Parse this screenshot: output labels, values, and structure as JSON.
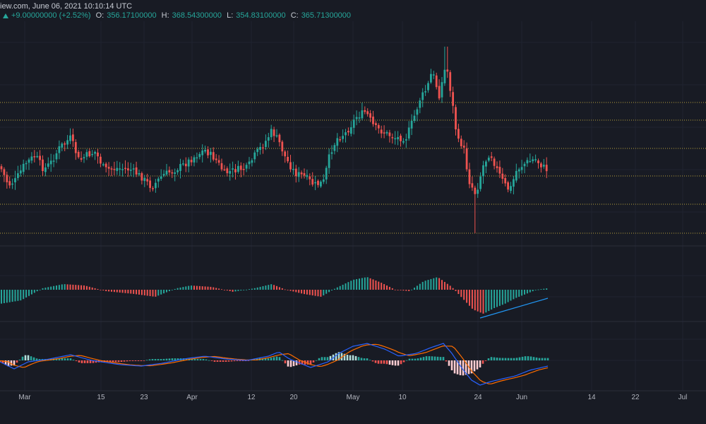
{
  "header": {
    "source_datetime": "iew.com, June 06, 2021 10:10:14 UTC",
    "change": "+9.00000000 (+2.52%)",
    "open_label": "O:",
    "open_value": "356.17100000",
    "high_label": "H:",
    "high_value": "368.54300000",
    "low_label": "L:",
    "low_value": "354.83100000",
    "close_label": "C:",
    "close_value": "365.71300000"
  },
  "x_axis": [
    "Mar",
    "15",
    "23",
    "Apr",
    "12",
    "20",
    "May",
    "10",
    "24",
    "Jun",
    "14",
    "22",
    "Jul"
  ],
  "colors": {
    "background": "#181b24",
    "up": "#26a69a",
    "down": "#ef5350",
    "level_line": "#b8a23c",
    "macd_line": "#2962ff",
    "signal_line": "#ff6d00",
    "trendline": "#2196f3"
  },
  "chart_data": [
    {
      "type": "candlestick",
      "title": "",
      "xlabel": "",
      "ylabel": "",
      "last_candle": {
        "open": 356.171,
        "high": 368.543,
        "low": 354.831,
        "close": 365.713
      },
      "horizontal_levels_count": 6,
      "grid": true
    },
    {
      "type": "bar",
      "title": "",
      "description_of_series": "histogram oscillator with rising trendline at lows",
      "has_trendline": true
    },
    {
      "type": "line",
      "title": "",
      "has_histogram": true,
      "line_count": 2
    }
  ]
}
